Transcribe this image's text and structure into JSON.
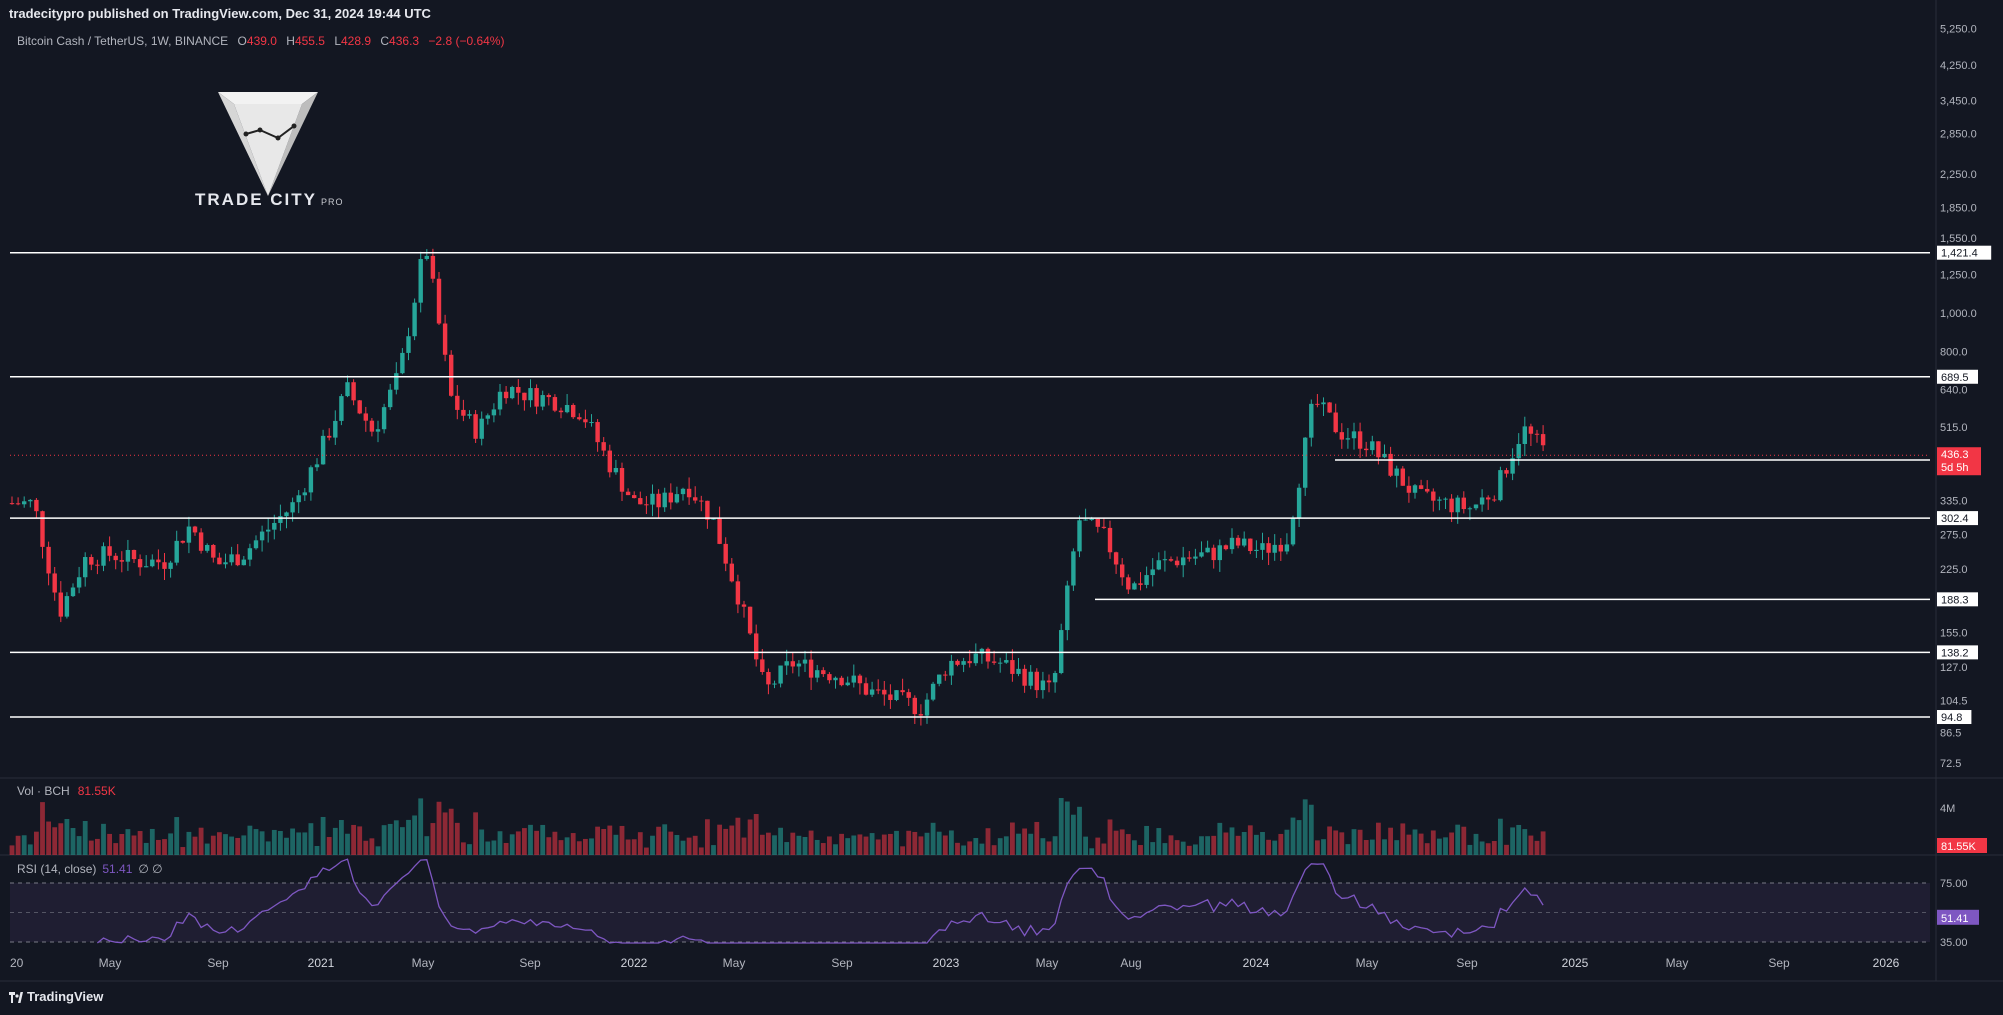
{
  "publisher": "tradecitypro published on TradingView.com, Dec 31, 2024 19:44 UTC",
  "legend": {
    "symbol": "Bitcoin Cash / TetherUS, 1W, BINANCE",
    "o_label": "O",
    "o": "439.0",
    "h_label": "H",
    "h": "455.5",
    "l_label": "L",
    "l": "428.9",
    "c_label": "C",
    "c": "436.3",
    "change": "−2.8 (−0.64%)"
  },
  "logo": {
    "text": "TRADE CITY",
    "sub": "PRO"
  },
  "volume": {
    "label": "Vol · BCH",
    "value": "81.55K",
    "axis_label": "4M",
    "badge": "81.55K"
  },
  "rsi": {
    "label": "RSI (14, close)",
    "value": "51.41",
    "nulls": "∅ ∅",
    "badge": "51.41"
  },
  "footer": {
    "brand": "TradingView"
  },
  "colors": {
    "background": "#131722",
    "up": "#26a69a",
    "down": "#f23645",
    "level_line": "#ffffff",
    "rsi_line": "#7e57c2",
    "rsi_band": "#2a2540",
    "current_price": "#f23645"
  },
  "chart_data": {
    "type": "candlestick",
    "scale": "log",
    "price_axis_ticks": [
      "5,250.0",
      "4,250.0",
      "3,450.0",
      "2,850.0",
      "2,250.0",
      "1,850.0",
      "1,550.0",
      "1,250.0",
      "1,000.0",
      "800.0",
      "640.0",
      "515.0",
      "335.0",
      "275.0",
      "225.0",
      "155.0",
      "127.0",
      "104.5",
      "86.5",
      "72.5"
    ],
    "time_axis_ticks": [
      "20",
      "May",
      "Sep",
      "2021",
      "May",
      "Sep",
      "2022",
      "May",
      "Sep",
      "2023",
      "May",
      "Aug",
      "2024",
      "May",
      "Sep",
      "2025",
      "May",
      "Sep",
      "2026"
    ],
    "horizontal_levels": [
      1421.4,
      689.5,
      424.2,
      302.4,
      188.3,
      138.2,
      94.8
    ],
    "horizontal_level_labels": [
      "1,421.4",
      "689.5",
      "424.2",
      "302.4",
      "188.3",
      "138.2",
      "94.8"
    ],
    "current_price": {
      "value": "436.3",
      "countdown": "5d 5h"
    },
    "rsi_ticks": [
      "75.00",
      "35.00"
    ],
    "price_path": [
      [
        "2020-02",
        330
      ],
      [
        "2020-03",
        175
      ],
      [
        "2020-04",
        240
      ],
      [
        "2020-05",
        245
      ],
      [
        "2020-06",
        235
      ],
      [
        "2020-07",
        235
      ],
      [
        "2020-08",
        290
      ],
      [
        "2020-09",
        230
      ],
      [
        "2020-10",
        245
      ],
      [
        "2020-11",
        285
      ],
      [
        "2020-12",
        330
      ],
      [
        "2021-01",
        450
      ],
      [
        "2021-02",
        640
      ],
      [
        "2021-03",
        500
      ],
      [
        "2021-04",
        700
      ],
      [
        "2021-05",
        1500
      ],
      [
        "2021-06",
        600
      ],
      [
        "2021-07",
        500
      ],
      [
        "2021-08",
        650
      ],
      [
        "2021-09",
        620
      ],
      [
        "2021-10",
        600
      ],
      [
        "2021-11",
        560
      ],
      [
        "2021-12",
        420
      ],
      [
        "2022-01",
        330
      ],
      [
        "2022-02",
        330
      ],
      [
        "2022-03",
        370
      ],
      [
        "2022-04",
        300
      ],
      [
        "2022-05",
        190
      ],
      [
        "2022-06",
        110
      ],
      [
        "2022-07",
        130
      ],
      [
        "2022-08",
        125
      ],
      [
        "2022-09",
        120
      ],
      [
        "2022-10",
        110
      ],
      [
        "2022-11",
        105
      ],
      [
        "2022-12",
        100
      ],
      [
        "2023-01",
        130
      ],
      [
        "2023-02",
        135
      ],
      [
        "2023-03",
        130
      ],
      [
        "2023-04",
        120
      ],
      [
        "2023-05",
        110
      ],
      [
        "2023-06",
        300
      ],
      [
        "2023-07",
        270
      ],
      [
        "2023-08",
        200
      ],
      [
        "2023-09",
        230
      ],
      [
        "2023-10",
        240
      ],
      [
        "2023-11",
        245
      ],
      [
        "2023-12",
        260
      ],
      [
        "2024-01",
        250
      ],
      [
        "2024-02",
        270
      ],
      [
        "2024-03",
        600
      ],
      [
        "2024-04",
        500
      ],
      [
        "2024-05",
        470
      ],
      [
        "2024-06",
        400
      ],
      [
        "2024-07",
        340
      ],
      [
        "2024-08",
        330
      ],
      [
        "2024-09",
        320
      ],
      [
        "2024-10",
        360
      ],
      [
        "2024-11",
        510
      ],
      [
        "2024-12",
        436.3
      ]
    ]
  }
}
